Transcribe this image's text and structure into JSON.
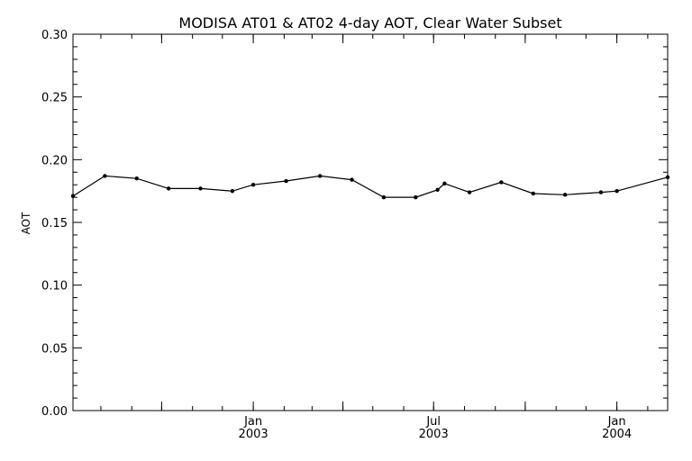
{
  "chart_data": {
    "type": "line",
    "title": "MODISA AT01 & AT02 4-day AOT, Clear Water Subset",
    "xlabel": "",
    "ylabel": "AOT",
    "ylim": [
      0.0,
      0.3
    ],
    "xlim": [
      "2002-07-04",
      "2004-02-21"
    ],
    "y_ticks": [
      "0.00",
      "0.05",
      "0.10",
      "0.15",
      "0.20",
      "0.25",
      "0.30"
    ],
    "x_ticks": [
      {
        "date": "2003-01-01",
        "month": "Jan",
        "year": "2003"
      },
      {
        "date": "2003-07-01",
        "month": "Jul",
        "year": "2003"
      },
      {
        "date": "2004-01-01",
        "month": "Jan",
        "year": "2004"
      }
    ],
    "x_minor_ticks": [
      "2002-10-01",
      "2003-04-01",
      "2003-10-01"
    ],
    "grid": false,
    "series": [
      {
        "x": [
          "2002-07-04",
          "2002-08-05",
          "2002-09-06",
          "2002-10-08",
          "2002-11-09",
          "2002-12-11",
          "2003-01-01",
          "2003-02-03",
          "2003-03-09",
          "2003-04-10",
          "2003-05-12",
          "2003-06-13",
          "2003-07-05",
          "2003-07-12",
          "2003-08-06",
          "2003-09-07",
          "2003-10-09",
          "2003-11-10",
          "2003-12-16",
          "2004-01-01",
          "2004-02-21"
        ],
        "y": [
          0.171,
          0.187,
          0.185,
          0.177,
          0.177,
          0.175,
          0.18,
          0.183,
          0.187,
          0.184,
          0.17,
          0.17,
          0.176,
          0.181,
          0.174,
          0.182,
          0.173,
          0.172,
          0.174,
          0.175,
          0.186
        ]
      }
    ]
  }
}
